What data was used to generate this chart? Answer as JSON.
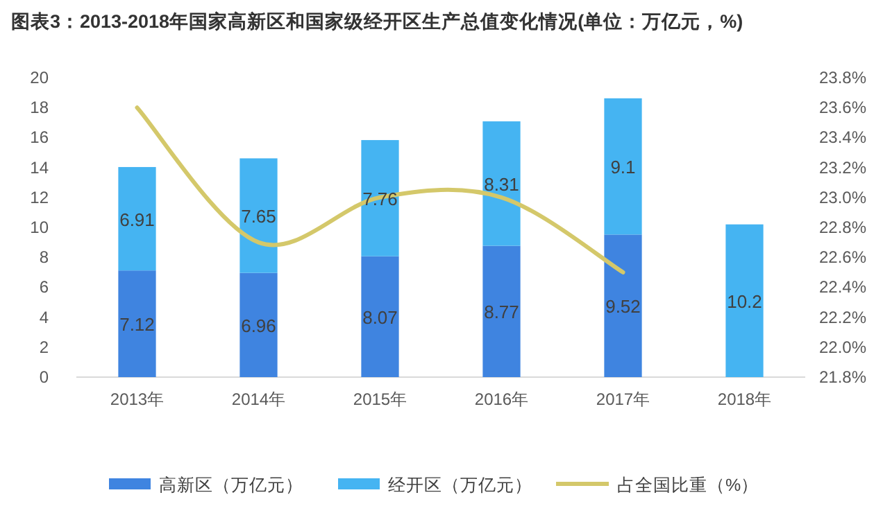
{
  "chart_data": {
    "type": "bar",
    "stacked": true,
    "title": "图表3：2013-2018年国家高新区和国家级经开区生产总值变化情况(单位：万亿元，%)",
    "categories": [
      "2013年",
      "2014年",
      "2015年",
      "2016年",
      "2017年",
      "2018年"
    ],
    "series": [
      {
        "name": "高新区（万亿元）",
        "color": "#3f84e0",
        "values": [
          7.12,
          6.96,
          8.07,
          8.77,
          9.52,
          null
        ],
        "value_labels": [
          "7.12",
          "6.96",
          "8.07",
          "8.77",
          "9.52",
          null
        ]
      },
      {
        "name": "经开区（万亿元）",
        "color": "#45b4f2",
        "values": [
          6.91,
          7.65,
          7.76,
          8.31,
          9.1,
          10.2
        ],
        "value_labels": [
          "6.91",
          "7.65",
          "7.76",
          "8.31",
          "9.1",
          "10.2"
        ]
      },
      {
        "name": "占全国比重（%）",
        "type": "line",
        "axis": "y2",
        "color": "#d4c86a",
        "values": [
          23.6,
          22.7,
          23.0,
          23.0,
          22.5,
          null
        ]
      }
    ],
    "ylim": [
      0,
      20
    ],
    "yticks": [
      0,
      2,
      4,
      6,
      8,
      10,
      12,
      14,
      16,
      18,
      20
    ],
    "y2lim": [
      21.8,
      23.8
    ],
    "y2ticks": [
      {
        "value": 21.8,
        "label": "21.8%"
      },
      {
        "value": 22.0,
        "label": "22.0%"
      },
      {
        "value": 22.2,
        "label": "22.2%"
      },
      {
        "value": 22.4,
        "label": "22.4%"
      },
      {
        "value": 22.6,
        "label": "22.6%"
      },
      {
        "value": 22.8,
        "label": "22.8%"
      },
      {
        "value": 23.0,
        "label": "23.0%"
      },
      {
        "value": 23.2,
        "label": "23.2%"
      },
      {
        "value": 23.4,
        "label": "23.4%"
      },
      {
        "value": 23.6,
        "label": "23.6%"
      },
      {
        "value": 23.8,
        "label": "23.8%"
      }
    ],
    "grid": false,
    "legend": "bottom"
  }
}
